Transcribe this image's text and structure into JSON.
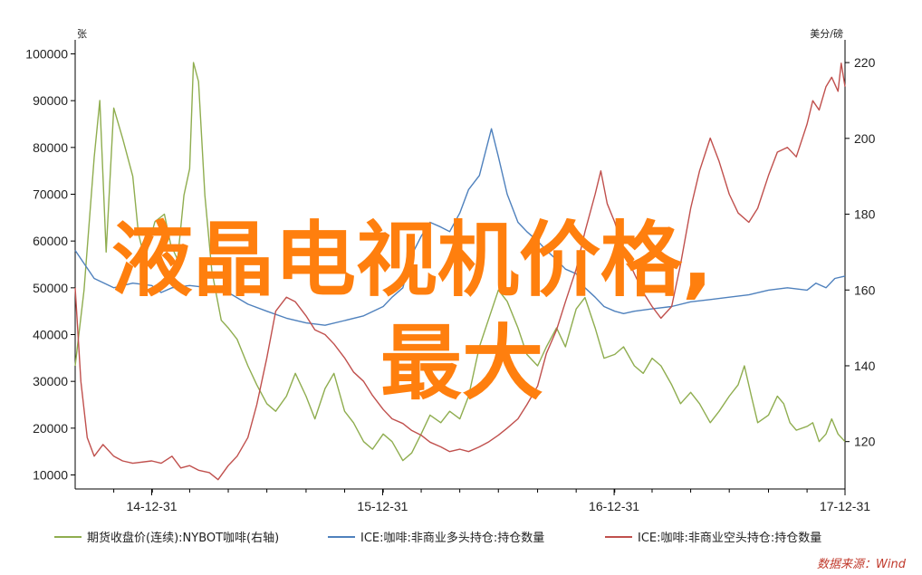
{
  "chart_data": {
    "type": "line",
    "title": "",
    "left_axis": {
      "unit_label": "张",
      "ylim": [
        7000,
        103000
      ],
      "ticks": [
        10000,
        20000,
        30000,
        40000,
        50000,
        60000,
        70000,
        80000,
        90000,
        100000
      ]
    },
    "right_axis": {
      "unit_label": "美分/磅",
      "ylim": [
        107.5,
        226
      ],
      "ticks": [
        120,
        140,
        160,
        180,
        200,
        220
      ]
    },
    "x_axis": {
      "range": [
        "2014-09-01",
        "2017-12-31"
      ],
      "tick_labels": [
        "14-12-31",
        "15-12-31",
        "16-12-31",
        "17-12-31"
      ],
      "tick_dates": [
        "2014-12-31",
        "2015-12-31",
        "2016-12-31",
        "2017-12-31"
      ]
    },
    "grid": false,
    "legend_position": "bottom",
    "series": [
      {
        "name": "期货收盘价(连续):NYBOT咖啡(右轴)",
        "axis": "right",
        "color": "#8fad4f",
        "points": [
          [
            "2014-09-01",
            140
          ],
          [
            "2014-09-15",
            160
          ],
          [
            "2014-10-01",
            195
          ],
          [
            "2014-10-10",
            210
          ],
          [
            "2014-10-20",
            170
          ],
          [
            "2014-11-01",
            208
          ],
          [
            "2014-11-15",
            200
          ],
          [
            "2014-12-01",
            190
          ],
          [
            "2014-12-10",
            175
          ],
          [
            "2014-12-20",
            168
          ],
          [
            "2015-01-05",
            178
          ],
          [
            "2015-01-20",
            180
          ],
          [
            "2015-01-30",
            172
          ],
          [
            "2015-02-10",
            168
          ],
          [
            "2015-02-20",
            185
          ],
          [
            "2015-03-01",
            192
          ],
          [
            "2015-03-07",
            220
          ],
          [
            "2015-03-15",
            215
          ],
          [
            "2015-03-25",
            185
          ],
          [
            "2015-04-05",
            165
          ],
          [
            "2015-04-20",
            152
          ],
          [
            "2015-05-01",
            150
          ],
          [
            "2015-05-15",
            147
          ],
          [
            "2015-06-01",
            140
          ],
          [
            "2015-06-15",
            135
          ],
          [
            "2015-07-01",
            130
          ],
          [
            "2015-07-15",
            128
          ],
          [
            "2015-08-01",
            132
          ],
          [
            "2015-08-15",
            138
          ],
          [
            "2015-09-01",
            132
          ],
          [
            "2015-09-15",
            126
          ],
          [
            "2015-10-01",
            134
          ],
          [
            "2015-10-15",
            138
          ],
          [
            "2015-11-01",
            128
          ],
          [
            "2015-11-15",
            125
          ],
          [
            "2015-12-01",
            120
          ],
          [
            "2015-12-15",
            118
          ],
          [
            "2016-01-01",
            122
          ],
          [
            "2016-01-15",
            120
          ],
          [
            "2016-02-01",
            115
          ],
          [
            "2016-02-15",
            117
          ],
          [
            "2016-03-01",
            122
          ],
          [
            "2016-03-15",
            127
          ],
          [
            "2016-04-01",
            125
          ],
          [
            "2016-04-15",
            128
          ],
          [
            "2016-05-01",
            126
          ],
          [
            "2016-05-15",
            132
          ],
          [
            "2016-06-01",
            145
          ],
          [
            "2016-06-15",
            152
          ],
          [
            "2016-07-01",
            160
          ],
          [
            "2016-07-15",
            157
          ],
          [
            "2016-08-01",
            150
          ],
          [
            "2016-08-15",
            143
          ],
          [
            "2016-09-01",
            140
          ],
          [
            "2016-09-15",
            145
          ],
          [
            "2016-10-01",
            150
          ],
          [
            "2016-10-15",
            145
          ],
          [
            "2016-11-01",
            155
          ],
          [
            "2016-11-15",
            158
          ],
          [
            "2016-12-01",
            150
          ],
          [
            "2016-12-15",
            142
          ],
          [
            "2017-01-01",
            143
          ],
          [
            "2017-01-15",
            145
          ],
          [
            "2017-02-01",
            140
          ],
          [
            "2017-02-15",
            138
          ],
          [
            "2017-03-01",
            142
          ],
          [
            "2017-03-15",
            140
          ],
          [
            "2017-04-01",
            135
          ],
          [
            "2017-04-15",
            130
          ],
          [
            "2017-05-01",
            133
          ],
          [
            "2017-05-15",
            130
          ],
          [
            "2017-06-01",
            125
          ],
          [
            "2017-06-15",
            128
          ],
          [
            "2017-07-01",
            132
          ],
          [
            "2017-07-15",
            135
          ],
          [
            "2017-07-25",
            140
          ],
          [
            "2017-08-05",
            132
          ],
          [
            "2017-08-15",
            125
          ],
          [
            "2017-09-01",
            127
          ],
          [
            "2017-09-15",
            132
          ],
          [
            "2017-09-25",
            130
          ],
          [
            "2017-10-05",
            125
          ],
          [
            "2017-10-15",
            123
          ],
          [
            "2017-11-01",
            124
          ],
          [
            "2017-11-10",
            125
          ],
          [
            "2017-11-20",
            120
          ],
          [
            "2017-12-01",
            122
          ],
          [
            "2017-12-10",
            126
          ],
          [
            "2017-12-20",
            122
          ],
          [
            "2017-12-31",
            120
          ]
        ]
      },
      {
        "name": "ICE:咖啡:非商业多头持仓:持仓数量",
        "axis": "left",
        "color": "#4f81bd",
        "points": [
          [
            "2014-09-01",
            58000
          ],
          [
            "2014-10-01",
            52000
          ],
          [
            "2014-11-01",
            50000
          ],
          [
            "2014-12-01",
            51000
          ],
          [
            "2014-12-31",
            50500
          ],
          [
            "2015-01-15",
            49000
          ],
          [
            "2015-02-01",
            50000
          ],
          [
            "2015-03-01",
            50500
          ],
          [
            "2015-04-01",
            50000
          ],
          [
            "2015-05-01",
            49000
          ],
          [
            "2015-06-01",
            46500
          ],
          [
            "2015-07-01",
            45000
          ],
          [
            "2015-08-01",
            43500
          ],
          [
            "2015-09-01",
            42500
          ],
          [
            "2015-10-01",
            42000
          ],
          [
            "2015-11-01",
            43000
          ],
          [
            "2015-12-01",
            44000
          ],
          [
            "2016-01-01",
            46000
          ],
          [
            "2016-01-15",
            48000
          ],
          [
            "2016-02-01",
            50000
          ],
          [
            "2016-02-15",
            57000
          ],
          [
            "2016-03-01",
            61000
          ],
          [
            "2016-03-15",
            64000
          ],
          [
            "2016-04-01",
            63000
          ],
          [
            "2016-04-15",
            62000
          ],
          [
            "2016-05-01",
            66000
          ],
          [
            "2016-05-15",
            71000
          ],
          [
            "2016-06-01",
            74000
          ],
          [
            "2016-06-20",
            84000
          ],
          [
            "2016-07-01",
            78000
          ],
          [
            "2016-07-15",
            70000
          ],
          [
            "2016-08-01",
            64000
          ],
          [
            "2016-08-15",
            62000
          ],
          [
            "2016-09-01",
            60000
          ],
          [
            "2016-09-15",
            58000
          ],
          [
            "2016-10-01",
            56000
          ],
          [
            "2016-10-15",
            54000
          ],
          [
            "2016-11-01",
            53000
          ],
          [
            "2016-11-15",
            50000
          ],
          [
            "2016-12-01",
            48000
          ],
          [
            "2016-12-15",
            46000
          ],
          [
            "2017-01-01",
            45000
          ],
          [
            "2017-01-15",
            44500
          ],
          [
            "2017-02-01",
            45000
          ],
          [
            "2017-03-01",
            45500
          ],
          [
            "2017-04-01",
            46000
          ],
          [
            "2017-05-01",
            47000
          ],
          [
            "2017-06-01",
            47500
          ],
          [
            "2017-07-01",
            48000
          ],
          [
            "2017-08-01",
            48500
          ],
          [
            "2017-09-01",
            49500
          ],
          [
            "2017-10-01",
            50000
          ],
          [
            "2017-11-01",
            49500
          ],
          [
            "2017-11-15",
            51000
          ],
          [
            "2017-12-01",
            50000
          ],
          [
            "2017-12-15",
            52000
          ],
          [
            "2017-12-31",
            52500
          ]
        ]
      },
      {
        "name": "ICE:咖啡:非商业空头持仓:持仓数量",
        "axis": "left",
        "color": "#c0504d",
        "points": [
          [
            "2014-09-01",
            50000
          ],
          [
            "2014-09-10",
            30000
          ],
          [
            "2014-09-20",
            18000
          ],
          [
            "2014-10-01",
            14000
          ],
          [
            "2014-10-15",
            16500
          ],
          [
            "2014-11-01",
            14000
          ],
          [
            "2014-11-15",
            13000
          ],
          [
            "2014-12-01",
            12500
          ],
          [
            "2014-12-31",
            13000
          ],
          [
            "2015-01-15",
            12500
          ],
          [
            "2015-02-01",
            14000
          ],
          [
            "2015-02-15",
            11500
          ],
          [
            "2015-03-01",
            12000
          ],
          [
            "2015-03-15",
            11000
          ],
          [
            "2015-04-01",
            10500
          ],
          [
            "2015-04-15",
            9000
          ],
          [
            "2015-05-01",
            12000
          ],
          [
            "2015-05-15",
            14000
          ],
          [
            "2015-06-01",
            18000
          ],
          [
            "2015-06-15",
            25000
          ],
          [
            "2015-07-01",
            35000
          ],
          [
            "2015-07-15",
            45000
          ],
          [
            "2015-08-01",
            48000
          ],
          [
            "2015-08-15",
            47000
          ],
          [
            "2015-09-01",
            44000
          ],
          [
            "2015-09-15",
            41000
          ],
          [
            "2015-10-01",
            40000
          ],
          [
            "2015-10-15",
            38000
          ],
          [
            "2015-11-01",
            35000
          ],
          [
            "2015-11-15",
            32000
          ],
          [
            "2015-12-01",
            30000
          ],
          [
            "2015-12-15",
            27000
          ],
          [
            "2016-01-01",
            24000
          ],
          [
            "2016-01-15",
            22000
          ],
          [
            "2016-02-01",
            21000
          ],
          [
            "2016-02-15",
            19500
          ],
          [
            "2016-03-01",
            18500
          ],
          [
            "2016-03-15",
            17000
          ],
          [
            "2016-04-01",
            16000
          ],
          [
            "2016-04-15",
            15000
          ],
          [
            "2016-05-01",
            15500
          ],
          [
            "2016-05-15",
            15000
          ],
          [
            "2016-06-01",
            16000
          ],
          [
            "2016-06-15",
            17000
          ],
          [
            "2016-07-01",
            18500
          ],
          [
            "2016-07-15",
            20000
          ],
          [
            "2016-08-01",
            22000
          ],
          [
            "2016-08-15",
            25000
          ],
          [
            "2016-09-01",
            29000
          ],
          [
            "2016-09-15",
            36000
          ],
          [
            "2016-10-01",
            41000
          ],
          [
            "2016-10-15",
            47000
          ],
          [
            "2016-11-01",
            54000
          ],
          [
            "2016-11-15",
            62000
          ],
          [
            "2016-12-01",
            70000
          ],
          [
            "2016-12-10",
            75000
          ],
          [
            "2016-12-20",
            68000
          ],
          [
            "2017-01-01",
            64000
          ],
          [
            "2017-01-15",
            58000
          ],
          [
            "2017-02-01",
            53000
          ],
          [
            "2017-02-15",
            49000
          ],
          [
            "2017-03-01",
            46000
          ],
          [
            "2017-03-15",
            43500
          ],
          [
            "2017-04-01",
            46000
          ],
          [
            "2017-04-15",
            55000
          ],
          [
            "2017-05-01",
            67000
          ],
          [
            "2017-05-15",
            75000
          ],
          [
            "2017-06-01",
            82000
          ],
          [
            "2017-06-15",
            77000
          ],
          [
            "2017-07-01",
            70000
          ],
          [
            "2017-07-15",
            66000
          ],
          [
            "2017-08-01",
            64000
          ],
          [
            "2017-08-15",
            67000
          ],
          [
            "2017-09-01",
            74000
          ],
          [
            "2017-09-15",
            79000
          ],
          [
            "2017-10-01",
            80000
          ],
          [
            "2017-10-15",
            78000
          ],
          [
            "2017-11-01",
            85000
          ],
          [
            "2017-11-10",
            90000
          ],
          [
            "2017-11-20",
            88000
          ],
          [
            "2017-12-01",
            93000
          ],
          [
            "2017-12-10",
            95000
          ],
          [
            "2017-12-20",
            92000
          ],
          [
            "2017-12-25",
            98000
          ],
          [
            "2017-12-31",
            93000
          ]
        ]
      }
    ],
    "annotations": {
      "overlay_title": [
        "液晶电视机价格,",
        "最大"
      ],
      "source": "数据来源：Wind"
    }
  },
  "colors": {
    "overlay": "#ff7f0e",
    "source": "#c0392b",
    "axis": "#000000"
  }
}
